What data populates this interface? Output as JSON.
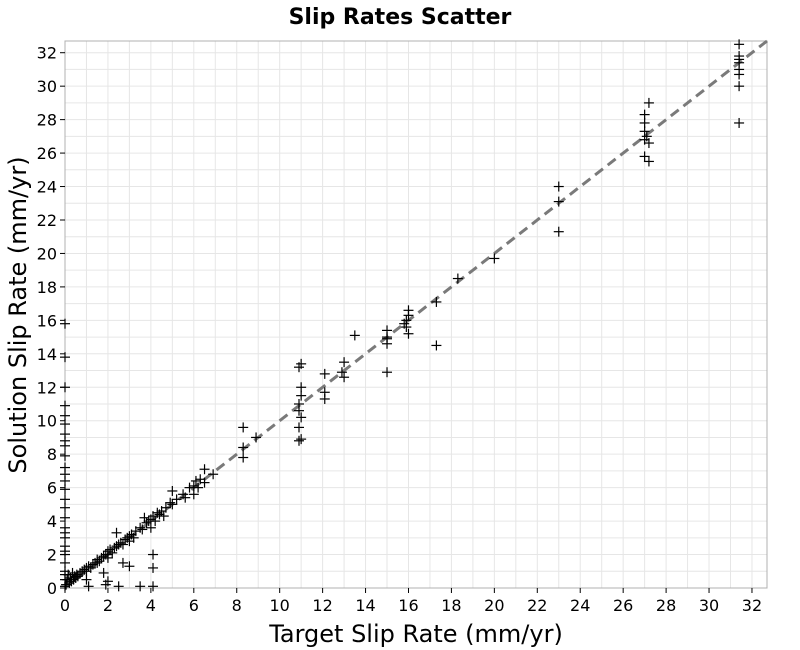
{
  "chart_data": {
    "type": "scatter",
    "title": "Slip Rates Scatter",
    "xlabel": "Target Slip Rate (mm/yr)",
    "ylabel": "Solution Slip Rate (mm/yr)",
    "xlim": [
      0,
      32.7
    ],
    "ylim": [
      0,
      32.7
    ],
    "xticks": [
      0,
      2,
      4,
      6,
      8,
      10,
      12,
      14,
      16,
      18,
      20,
      22,
      24,
      26,
      28,
      30,
      32
    ],
    "yticks": [
      0,
      2,
      4,
      6,
      8,
      10,
      12,
      14,
      16,
      18,
      20,
      22,
      24,
      26,
      28,
      30,
      32
    ],
    "grid": true,
    "marker": "+",
    "colors": {
      "points": "#000000",
      "reference_line": "#7a7a7a",
      "grid": "#e6e6e6",
      "frame": "#b0b0b0"
    },
    "reference_line": {
      "style": "dashed",
      "from": [
        0,
        0
      ],
      "to": [
        32.7,
        32.7
      ]
    },
    "series": [
      {
        "points": [
          [
            0.05,
            0.2
          ],
          [
            0.1,
            0.5
          ],
          [
            0.15,
            0.8
          ],
          [
            0.2,
            0.3
          ],
          [
            0.25,
            0.6
          ],
          [
            0.3,
            0.4
          ],
          [
            0.35,
            0.9
          ],
          [
            0.4,
            0.5
          ],
          [
            0.45,
            0.7
          ],
          [
            0.5,
            0.6
          ],
          [
            0.55,
            0.8
          ],
          [
            0.6,
            0.7
          ],
          [
            0.7,
            0.9
          ],
          [
            0.8,
            1.0
          ],
          [
            0.9,
            1.1
          ],
          [
            1.0,
            1.0
          ],
          [
            1.0,
            1.2
          ],
          [
            1.1,
            1.3
          ],
          [
            1.2,
            1.2
          ],
          [
            1.3,
            1.4
          ],
          [
            1.4,
            1.5
          ],
          [
            1.5,
            1.5
          ],
          [
            1.5,
            1.7
          ],
          [
            1.6,
            1.6
          ],
          [
            1.7,
            1.8
          ],
          [
            1.8,
            1.9
          ],
          [
            1.9,
            2.0
          ],
          [
            2.0,
            2.0
          ],
          [
            2.0,
            2.2
          ],
          [
            2.0,
            1.8
          ],
          [
            2.1,
            2.3
          ],
          [
            2.2,
            2.1
          ],
          [
            2.3,
            2.4
          ],
          [
            2.4,
            2.5
          ],
          [
            2.4,
            3.3
          ],
          [
            2.5,
            2.6
          ],
          [
            2.6,
            2.7
          ],
          [
            2.7,
            2.6
          ],
          [
            2.8,
            2.9
          ],
          [
            2.9,
            3.0
          ],
          [
            3.0,
            3.1
          ],
          [
            3.0,
            2.8
          ],
          [
            3.1,
            3.2
          ],
          [
            3.2,
            3.0
          ],
          [
            3.3,
            3.4
          ],
          [
            3.5,
            3.6
          ],
          [
            3.6,
            3.5
          ],
          [
            3.7,
            4.2
          ],
          [
            3.8,
            3.9
          ],
          [
            3.9,
            4.0
          ],
          [
            4.0,
            4.1
          ],
          [
            4.0,
            3.6
          ],
          [
            4.1,
            4.3
          ],
          [
            4.2,
            4.0
          ],
          [
            4.3,
            4.5
          ],
          [
            4.4,
            4.4
          ],
          [
            4.5,
            4.6
          ],
          [
            4.6,
            4.3
          ],
          [
            4.7,
            4.8
          ],
          [
            4.9,
            5.1
          ],
          [
            5.0,
            5.0
          ],
          [
            5.0,
            5.8
          ],
          [
            5.2,
            5.3
          ],
          [
            5.5,
            5.6
          ],
          [
            5.6,
            5.4
          ],
          [
            5.8,
            6.0
          ],
          [
            6.0,
            6.1
          ],
          [
            6.0,
            5.6
          ],
          [
            6.1,
            6.4
          ],
          [
            6.2,
            6.0
          ],
          [
            6.3,
            6.5
          ],
          [
            6.5,
            6.3
          ],
          [
            6.5,
            7.1
          ],
          [
            6.9,
            6.8
          ],
          [
            8.3,
            8.4
          ],
          [
            8.3,
            9.6
          ],
          [
            8.3,
            7.8
          ],
          [
            8.9,
            9.0
          ],
          [
            10.9,
            11.0
          ],
          [
            10.9,
            13.2
          ],
          [
            10.9,
            10.6
          ],
          [
            10.9,
            9.6
          ],
          [
            10.9,
            8.8
          ],
          [
            11.0,
            12.0
          ],
          [
            11.0,
            13.4
          ],
          [
            11.0,
            11.5
          ],
          [
            11.0,
            10.2
          ],
          [
            11.0,
            8.9
          ],
          [
            12.1,
            12.8
          ],
          [
            12.1,
            11.7
          ],
          [
            12.1,
            11.3
          ],
          [
            12.9,
            12.9
          ],
          [
            13.0,
            13.5
          ],
          [
            13.0,
            12.6
          ],
          [
            13.5,
            15.1
          ],
          [
            15.0,
            15.0
          ],
          [
            15.0,
            15.4
          ],
          [
            15.0,
            14.6
          ],
          [
            15.0,
            14.9
          ],
          [
            15.0,
            12.9
          ],
          [
            15.8,
            15.8
          ],
          [
            15.9,
            16.0
          ],
          [
            15.9,
            15.6
          ],
          [
            16.0,
            16.6
          ],
          [
            16.0,
            16.3
          ],
          [
            16.0,
            15.2
          ],
          [
            17.3,
            17.1
          ],
          [
            17.3,
            14.5
          ],
          [
            18.3,
            18.5
          ],
          [
            20.0,
            19.7
          ],
          [
            23.0,
            24.0
          ],
          [
            23.0,
            23.1
          ],
          [
            23.0,
            21.3
          ],
          [
            27.0,
            27.3
          ],
          [
            27.0,
            26.8
          ],
          [
            27.0,
            27.8
          ],
          [
            27.0,
            25.8
          ],
          [
            27.0,
            28.3
          ],
          [
            27.1,
            27.0
          ],
          [
            27.2,
            29.0
          ],
          [
            27.2,
            25.5
          ],
          [
            27.2,
            26.6
          ],
          [
            31.4,
            31.4
          ],
          [
            31.4,
            31.8
          ],
          [
            31.4,
            31.0
          ],
          [
            31.4,
            32.5
          ],
          [
            31.4,
            30.7
          ],
          [
            31.4,
            30.0
          ],
          [
            31.4,
            27.8
          ],
          [
            31.4,
            31.6
          ],
          [
            1.0,
            0.5
          ],
          [
            1.1,
            0.1
          ],
          [
            1.8,
            0.9
          ],
          [
            1.9,
            0.2
          ],
          [
            2.0,
            0.4
          ],
          [
            2.5,
            0.1
          ],
          [
            2.7,
            1.5
          ],
          [
            3.0,
            1.3
          ],
          [
            3.5,
            0.1
          ],
          [
            4.1,
            2.0
          ],
          [
            4.1,
            1.2
          ],
          [
            4.1,
            0.1
          ],
          [
            0.0,
            10.9
          ],
          [
            0.0,
            9.8
          ],
          [
            0.0,
            9.2
          ],
          [
            0.0,
            8.5
          ],
          [
            0.0,
            7.9
          ],
          [
            0.0,
            7.2
          ],
          [
            0.0,
            6.4
          ],
          [
            0.0,
            5.9
          ],
          [
            0.0,
            5.3
          ],
          [
            0.0,
            4.8
          ],
          [
            0.0,
            4.2
          ],
          [
            0.0,
            3.6
          ],
          [
            0.0,
            3.0
          ],
          [
            0.0,
            2.5
          ],
          [
            0.0,
            2.0
          ],
          [
            0.0,
            1.5
          ],
          [
            0.0,
            1.0
          ],
          [
            0.0,
            0.5
          ],
          [
            0.0,
            12.0
          ],
          [
            0.0,
            13.8
          ],
          [
            0.0,
            15.8
          ],
          [
            0.0,
            10.3
          ],
          [
            0.0,
            8.8
          ],
          [
            0.0,
            6.8
          ],
          [
            0.0,
            3.3
          ],
          [
            0.0,
            2.2
          ],
          [
            0.0,
            0.8
          ],
          [
            0.0,
            0.1
          ]
        ]
      }
    ]
  }
}
